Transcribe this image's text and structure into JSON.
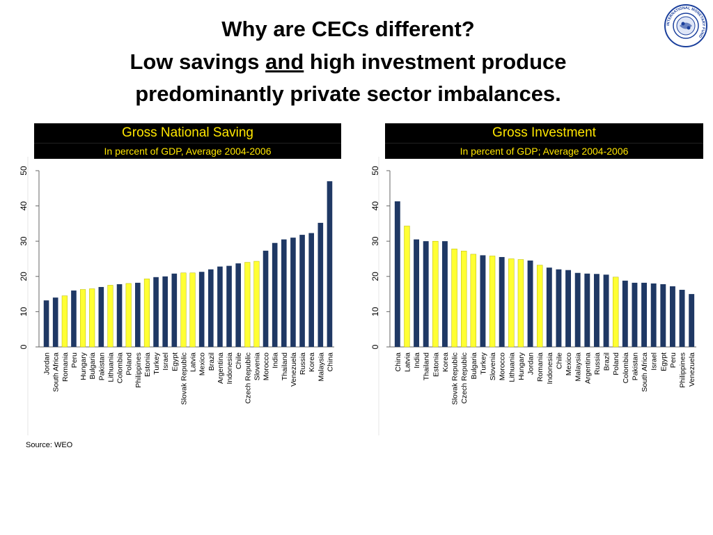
{
  "title": {
    "line1": "Why are CECs different?",
    "line2_pre": "Low savings ",
    "line2_underlined": "and",
    "line2_post": " high investment produce",
    "line3": "predominantly private sector imbalances."
  },
  "logo": {
    "text": "INTERNATIONAL MONETARY FUND",
    "icon": "imf-seal-icon"
  },
  "colors": {
    "navy": "#1f3864",
    "yellow": "#ffff33",
    "header_bg": "#000000",
    "header_text": "#ffe600"
  },
  "source": "Source: WEO",
  "chart_data": [
    {
      "type": "bar",
      "title": "Gross National Saving",
      "subtitle": "In percent of GDP, Average 2004-2006",
      "ylim": [
        0,
        50
      ],
      "yticks": [
        0,
        10,
        20,
        30,
        40,
        50
      ],
      "categories": [
        "Jordan",
        "South Africa",
        "Romania",
        "Peru",
        "Hungary",
        "Bulgaria",
        "Pakistan",
        "Lithuania",
        "Colombia",
        "Poland",
        "Philippines",
        "Estonia",
        "Turkey",
        "Israel",
        "Egypt",
        "Slovak Republic",
        "Latvia",
        "Mexico",
        "Brazil",
        "Argentina",
        "Indonesia",
        "Chile",
        "Czech Republic",
        "Slovenia",
        "Morocco",
        "India",
        "Thailand",
        "Venezuela",
        "Russia",
        "Korea",
        "Malaysia",
        "China"
      ],
      "values": [
        13.2,
        14.0,
        14.5,
        16.0,
        16.3,
        16.5,
        17.0,
        17.5,
        17.8,
        18.0,
        18.2,
        19.3,
        19.8,
        20.0,
        20.8,
        21.0,
        21.0,
        21.3,
        22.0,
        22.8,
        23.0,
        23.7,
        24.0,
        24.3,
        27.3,
        29.5,
        30.5,
        31.0,
        31.8,
        32.3,
        35.2,
        47.0
      ],
      "highlight": [
        "Romania",
        "Hungary",
        "Bulgaria",
        "Lithuania",
        "Poland",
        "Estonia",
        "Slovak Republic",
        "Latvia",
        "Czech Republic",
        "Slovenia"
      ]
    },
    {
      "type": "bar",
      "title": "Gross Investment",
      "subtitle": "In percent of GDP; Average 2004-2006",
      "ylim": [
        0,
        50
      ],
      "yticks": [
        0,
        10,
        20,
        30,
        40,
        50
      ],
      "categories": [
        "China",
        "Latvia",
        "India",
        "Thailand",
        "Estonia",
        "Korea",
        "Slovak Republic",
        "Czech Republic",
        "Bulgaria",
        "Turkey",
        "Slovenia",
        "Morocco",
        "Lithuania",
        "Hungary",
        "Jordan",
        "Romania",
        "Indonesia",
        "Chile",
        "Mexico",
        "Malaysia",
        "Argentina",
        "Russia",
        "Brazil",
        "Poland",
        "Colombia",
        "Pakistan",
        "South Africa",
        "Israel",
        "Egypt",
        "Peru",
        "Philippines",
        "Venezuela"
      ],
      "values": [
        41.3,
        34.3,
        30.5,
        30.0,
        30.0,
        30.0,
        27.8,
        27.2,
        26.3,
        26.0,
        25.8,
        25.5,
        25.0,
        24.8,
        24.5,
        23.2,
        22.5,
        22.0,
        21.8,
        21.0,
        20.8,
        20.7,
        20.5,
        19.8,
        18.8,
        18.2,
        18.2,
        18.0,
        17.8,
        17.2,
        16.2,
        15.0
      ],
      "highlight": [
        "Latvia",
        "Estonia",
        "Slovak Republic",
        "Czech Republic",
        "Bulgaria",
        "Slovenia",
        "Lithuania",
        "Hungary",
        "Romania",
        "Poland"
      ]
    }
  ]
}
